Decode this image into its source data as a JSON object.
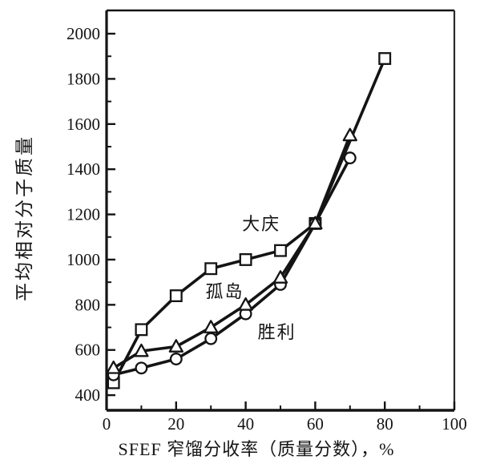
{
  "figure": {
    "background": "#ffffff",
    "ink_color": "#141414"
  },
  "chart_data": {
    "type": "line",
    "title": "",
    "xlabel": "SFEF 窄馏分收率（质量分数），%",
    "ylabel": "平均相对分子质量",
    "xlim": [
      0,
      100
    ],
    "ylim": [
      333,
      2103
    ],
    "x_ticks_major": [
      0,
      20,
      40,
      60,
      80,
      100
    ],
    "x_ticks_minor": [
      10,
      30,
      50,
      70,
      90
    ],
    "y_ticks_major": [
      400,
      600,
      800,
      1000,
      1200,
      1400,
      1600,
      1800,
      2000
    ],
    "y_ticks_minor": [
      500,
      700,
      900,
      1100,
      1300,
      1500,
      1700,
      1900
    ],
    "grid": false,
    "legend_position": "inline-annotations",
    "marker_fill": "#ffffff",
    "series": [
      {
        "id": "daqing",
        "name": "大庆",
        "marker": "square",
        "x": [
          2,
          10,
          20,
          30,
          40,
          50,
          60,
          80
        ],
        "values": [
          455,
          690,
          840,
          960,
          1000,
          1040,
          1160,
          1890
        ],
        "label_pos": {
          "x": 44.5,
          "y": 1160
        }
      },
      {
        "id": "shengli",
        "name": "胜利",
        "marker": "circle",
        "x": [
          2,
          10,
          20,
          30,
          40,
          50,
          60,
          70
        ],
        "values": [
          490,
          520,
          560,
          650,
          760,
          890,
          1160,
          1450
        ],
        "label_pos": {
          "x": 49,
          "y": 680
        }
      },
      {
        "id": "gudao",
        "name": "孤岛",
        "marker": "triangle",
        "x": [
          2,
          10,
          20,
          30,
          40,
          50,
          60,
          70
        ],
        "values": [
          520,
          595,
          615,
          700,
          800,
          920,
          1160,
          1550
        ],
        "label_pos": {
          "x": 34,
          "y": 860
        }
      }
    ]
  }
}
